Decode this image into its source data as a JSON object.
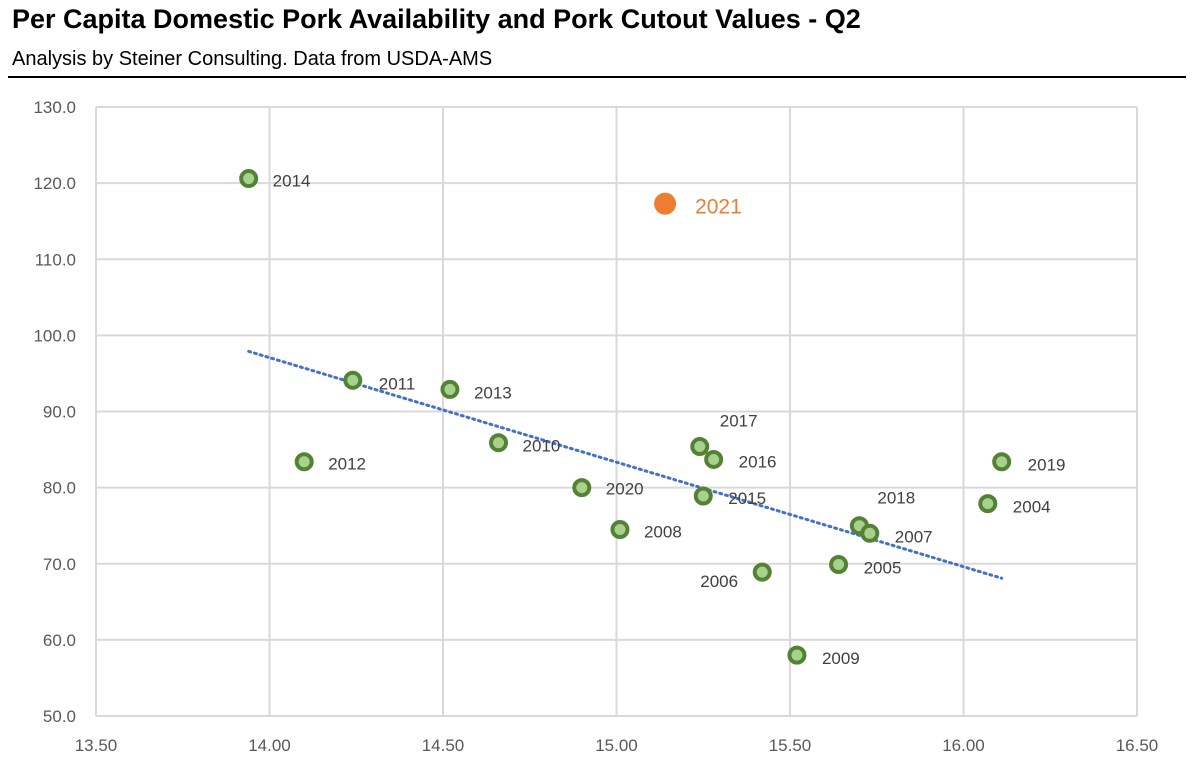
{
  "header": {
    "title": "Per Capita Domestic Pork Availability and Pork Cutout Values - Q2",
    "subtitle": "Analysis by Steiner Consulting.  Data from USDA-AMS"
  },
  "chart_data": {
    "type": "scatter",
    "title": "Per Capita Domestic Pork Availability and Pork Cutout Values - Q2",
    "subtitle": "Analysis by Steiner Consulting.  Data from USDA-AMS",
    "xlabel": "",
    "ylabel": "",
    "xlim": [
      13.5,
      16.5
    ],
    "ylim": [
      50,
      130
    ],
    "x_ticks": [
      "13.50",
      "14.00",
      "14.50",
      "15.00",
      "15.50",
      "16.00",
      "16.50"
    ],
    "y_ticks": [
      "50.0",
      "60.0",
      "70.0",
      "80.0",
      "90.0",
      "100.0",
      "110.0",
      "120.0",
      "130.0"
    ],
    "grid": true,
    "colors": {
      "point": "#548235",
      "point_fill": "#a9d18e",
      "highlight": "#ed7d31",
      "trend": "#4472c4",
      "grid": "#d9d9d9"
    },
    "points": [
      {
        "label": "2014",
        "x": 13.94,
        "y": 120.6
      },
      {
        "label": "2012",
        "x": 14.1,
        "y": 83.4
      },
      {
        "label": "2011",
        "x": 14.24,
        "y": 94.1
      },
      {
        "label": "2013",
        "x": 14.52,
        "y": 92.9
      },
      {
        "label": "2010",
        "x": 14.66,
        "y": 85.9
      },
      {
        "label": "2020",
        "x": 14.9,
        "y": 80.0
      },
      {
        "label": "2008",
        "x": 15.01,
        "y": 74.5
      },
      {
        "label": "2017",
        "x": 15.24,
        "y": 85.4
      },
      {
        "label": "2016",
        "x": 15.28,
        "y": 83.7
      },
      {
        "label": "2015",
        "x": 15.25,
        "y": 78.9
      },
      {
        "label": "2006",
        "x": 15.42,
        "y": 68.9
      },
      {
        "label": "2009",
        "x": 15.52,
        "y": 58.0
      },
      {
        "label": "2005",
        "x": 15.64,
        "y": 69.9
      },
      {
        "label": "2018",
        "x": 15.7,
        "y": 75.0
      },
      {
        "label": "2007",
        "x": 15.73,
        "y": 74.0
      },
      {
        "label": "2004",
        "x": 16.07,
        "y": 77.9
      },
      {
        "label": "2019",
        "x": 16.11,
        "y": 83.4
      }
    ],
    "highlight": {
      "label": "2021",
      "x": 15.14,
      "y": 117.3
    },
    "trendline": {
      "type": "linear",
      "x": [
        13.94,
        16.11
      ],
      "y": [
        97.9,
        68.1
      ]
    }
  }
}
